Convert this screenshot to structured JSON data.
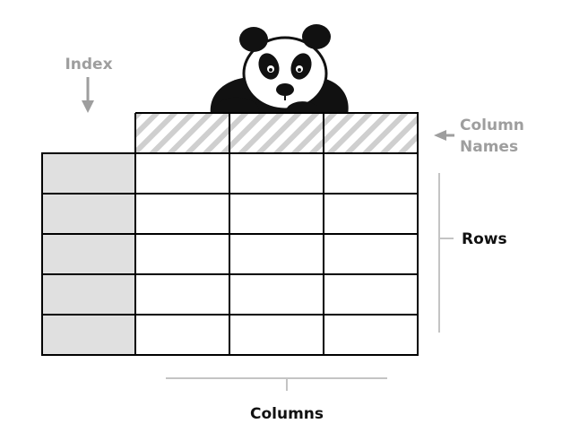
{
  "labels": {
    "index": "Index",
    "column_names_line1": "Column",
    "column_names_line2": "Names",
    "rows": "Rows",
    "columns": "Columns"
  },
  "table": {
    "index_rows": 5,
    "data_columns": 3
  },
  "colors": {
    "grid_line": "#000000",
    "index_fill": "#e0e0e0",
    "header_hatch": "#c8c8c8",
    "annotation_gray": "#9e9e9e",
    "bracket_gray": "#c4c4c4"
  },
  "illustration": "panda-peeking-over-table"
}
